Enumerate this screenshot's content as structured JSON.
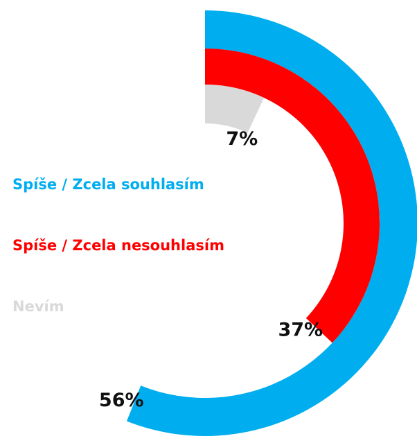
{
  "chart_data": {
    "type": "radial-bar",
    "series": [
      {
        "name": "Spíše / Zcela souhlasím",
        "color": "#00aeef",
        "values": [
          56
        ],
        "value_labels": [
          "56%"
        ]
      },
      {
        "name": "Spíše / Zcela nesouhlasím",
        "color": "#ff0000",
        "values": [
          37
        ],
        "value_labels": [
          "37%"
        ]
      },
      {
        "name": "Nevím",
        "color": "#d9d9d9",
        "values": [
          7
        ],
        "value_labels": [
          "7%"
        ]
      }
    ],
    "ylim": [
      0,
      100
    ]
  }
}
